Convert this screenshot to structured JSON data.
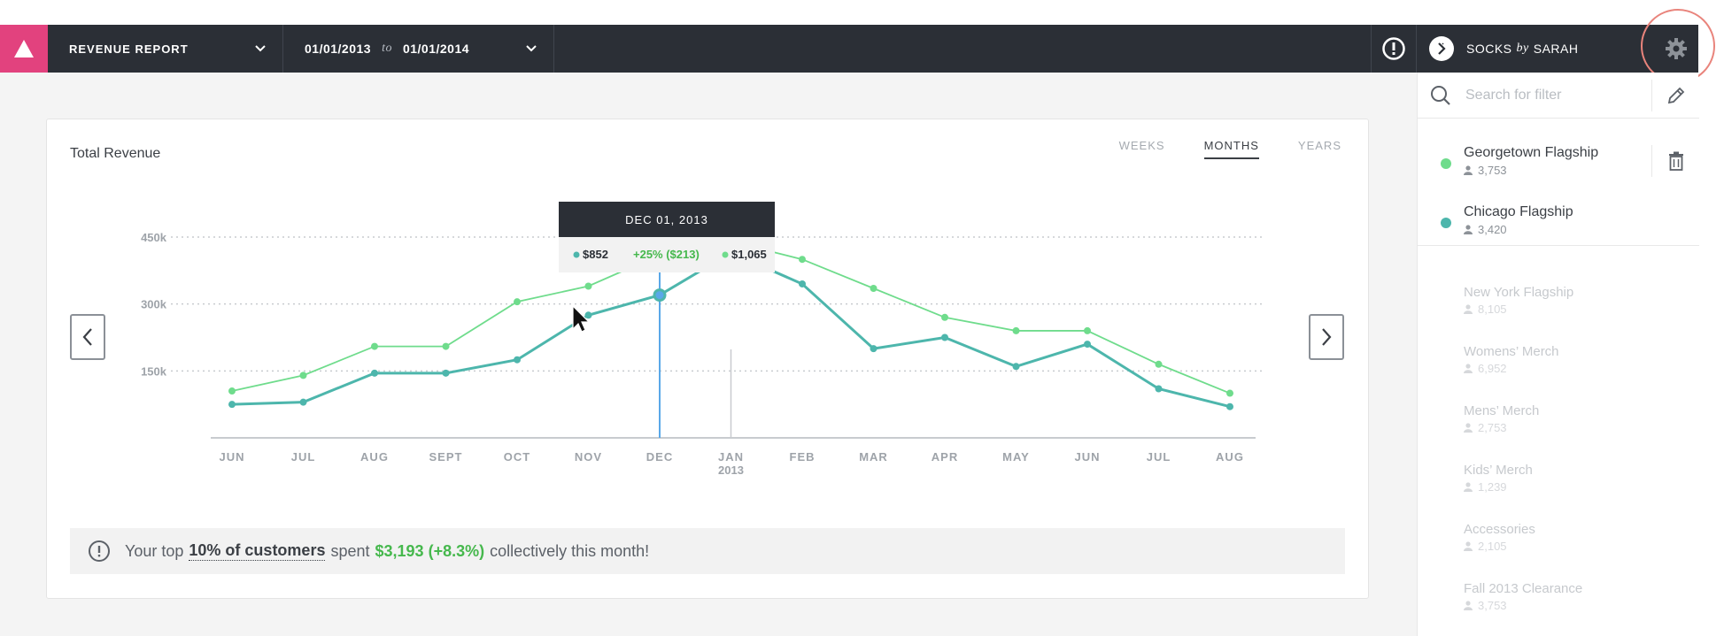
{
  "header": {
    "report_label": "REVENUE REPORT",
    "date_from": "01/01/2013",
    "date_to_word": "to",
    "date_to": "01/01/2014",
    "account_name": "SOCKS",
    "account_by": "by",
    "account_owner": "SARAH"
  },
  "card": {
    "title": "Total Revenue",
    "tabs": [
      "WEEKS",
      "MONTHS",
      "YEARS"
    ],
    "active_tab": "MONTHS"
  },
  "tooltip": {
    "date": "DEC 01, 2013",
    "value_a": "$852",
    "change": "+25% ($213)",
    "value_b": "$1,065"
  },
  "chart_data": {
    "type": "line",
    "categories": [
      "JUN",
      "JUL",
      "AUG",
      "SEPT",
      "OCT",
      "NOV",
      "DEC",
      "JAN",
      "FEB",
      "MAR",
      "APR",
      "MAY",
      "JUN",
      "JUL",
      "AUG"
    ],
    "year_marker": {
      "category_index": 7,
      "label": "2013"
    },
    "y_ticks": [
      "450k",
      "300k",
      "150k"
    ],
    "ylim": [
      0,
      450000
    ],
    "series": [
      {
        "name": "Georgetown Flagship",
        "color": "#6fdc8c",
        "values": [
          105000,
          140000,
          205000,
          205000,
          305000,
          340000,
          410000,
          440000,
          400000,
          335000,
          270000,
          240000,
          240000,
          165000,
          100000
        ]
      },
      {
        "name": "Chicago Flagship",
        "color": "#4db6ac",
        "values": [
          75000,
          80000,
          145000,
          145000,
          175000,
          275000,
          320000,
          415000,
          345000,
          200000,
          225000,
          160000,
          210000,
          110000,
          70000
        ]
      }
    ],
    "highlight_index": 6,
    "grid": true
  },
  "insight": {
    "prefix": "Your top",
    "highlight": "10% of customers",
    "middle": "spent",
    "amount": "$3,193 (+8.3%)",
    "suffix": "collectively this month!"
  },
  "sidebar": {
    "search_placeholder": "Search for filter",
    "active_stores": [
      {
        "name": "Georgetown Flagship",
        "count": "3,753",
        "color": "#6fdc8c"
      },
      {
        "name": "Chicago Flagship",
        "count": "3,420",
        "color": "#4db6ac"
      }
    ],
    "inactive_stores": [
      {
        "name": "New York Flagship",
        "count": "8,105"
      },
      {
        "name": "Womens’ Merch",
        "count": "6,952"
      },
      {
        "name": "Mens’ Merch",
        "count": "2,753"
      },
      {
        "name": "Kids’ Merch",
        "count": "1,239"
      },
      {
        "name": "Accessories",
        "count": "2,105"
      },
      {
        "name": "Fall 2013 Clearance",
        "count": "3,753"
      }
    ]
  }
}
